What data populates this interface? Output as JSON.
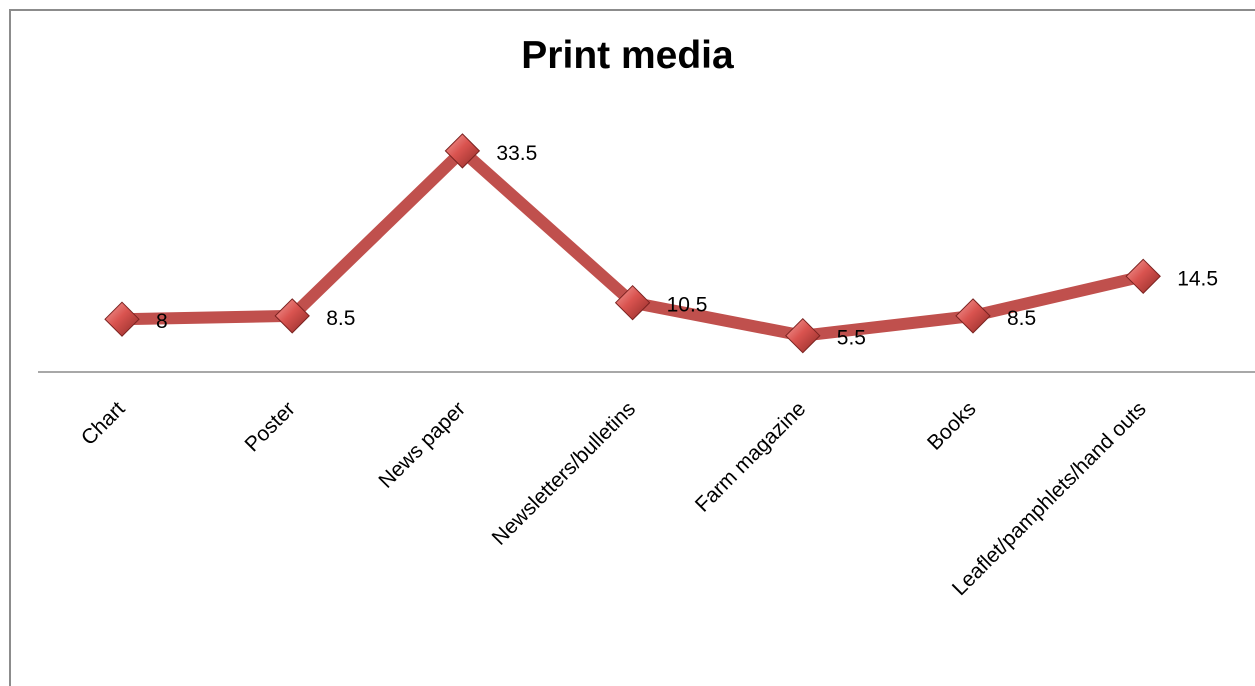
{
  "chart_data": {
    "type": "line",
    "title": "Print media",
    "categories": [
      "Chart",
      "Poster",
      "News paper",
      "Newsletters/bulletins",
      "Farm magazine",
      "Books",
      "Leaflet/pamphlets/hand outs"
    ],
    "series": [
      {
        "values": [
          8,
          8.5,
          33.5,
          10.5,
          5.5,
          8.5,
          14.5
        ],
        "color": "#c0504d"
      }
    ],
    "data_labels": [
      "8",
      "8.5",
      "33.5",
      "10.5",
      "5.5",
      "8.5",
      "14.5"
    ],
    "xlabel": "",
    "ylabel": "",
    "ylim": [
      -9,
      40
    ],
    "grid": false,
    "legend": "none",
    "marker": "diamond"
  }
}
